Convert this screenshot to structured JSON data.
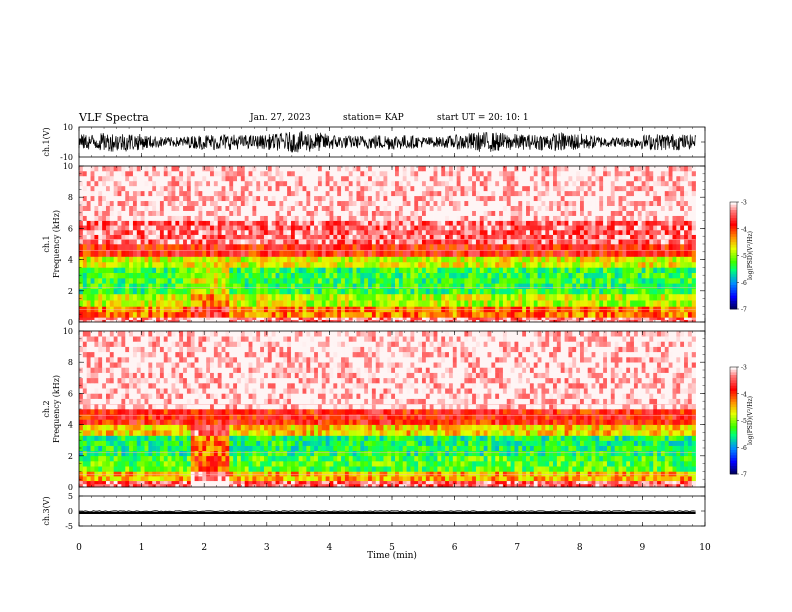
{
  "header": {
    "title": "VLF Spectra",
    "date": "Jan. 27, 2023",
    "station": "station= KAP",
    "start": "start  UT  =   20: 10: 1"
  },
  "chart_data": [
    {
      "type": "line",
      "panel": "ch1-waveform",
      "ylabel": "ch.1(V)",
      "ylim": [
        -10,
        10
      ],
      "yticklabels": [
        "10",
        "-10"
      ],
      "x_range_min": [
        0,
        9.85
      ],
      "description_of_values": "dense oscillating waveform filling most of the range"
    },
    {
      "type": "heatmap",
      "panel": "ch1-spectrogram",
      "ylabel_line1": "ch.1",
      "ylabel_line2": "Frequency (kHz)",
      "ylim": [
        0,
        10
      ],
      "yticks": [
        0,
        2,
        4,
        6,
        8,
        10
      ],
      "bands_khz": [
        {
          "from": 0,
          "to": 0.3,
          "level": -3.3
        },
        {
          "from": 0.3,
          "to": 1.0,
          "level": -4.2
        },
        {
          "from": 1.0,
          "to": 1.8,
          "level": -4.8
        },
        {
          "from": 1.8,
          "to": 3.5,
          "level": -5.3
        },
        {
          "from": 3.5,
          "to": 4.2,
          "level": -4.7
        },
        {
          "from": 4.2,
          "to": 5.0,
          "level": -3.8
        },
        {
          "from": 5.0,
          "to": 6.5,
          "level": -3.4
        },
        {
          "from": 6.5,
          "to": 10.0,
          "level": -3.0
        }
      ],
      "colorbar": {
        "label": "log(PSD)(V²/Hz)",
        "ticks": [
          "-3",
          "-4",
          "-5",
          "-6",
          "-7"
        ],
        "range": [
          -7,
          -3
        ]
      }
    },
    {
      "type": "heatmap",
      "panel": "ch2-spectrogram",
      "ylabel_line1": "ch.2",
      "ylabel_line2": "Frequency (kHz)",
      "ylim": [
        0,
        10
      ],
      "yticks": [
        0,
        2,
        4,
        6,
        8,
        10
      ],
      "bands_khz": [
        {
          "from": 0,
          "to": 0.4,
          "level": -3.4
        },
        {
          "from": 0.4,
          "to": 1.0,
          "level": -4.4
        },
        {
          "from": 1.0,
          "to": 2.0,
          "level": -5.2
        },
        {
          "from": 2.0,
          "to": 3.3,
          "level": -5.4
        },
        {
          "from": 3.3,
          "to": 4.0,
          "level": -4.5
        },
        {
          "from": 4.0,
          "to": 5.0,
          "level": -3.8
        },
        {
          "from": 5.0,
          "to": 10.0,
          "level": -3.0
        }
      ],
      "colorbar": {
        "label": "log(PSD)(V²/Hz)",
        "ticks": [
          "-3",
          "-4",
          "-5",
          "-6",
          "-7"
        ],
        "range": [
          -7,
          -3
        ]
      }
    },
    {
      "type": "line",
      "panel": "ch3-waveform",
      "ylabel": "ch.3(V)",
      "ylim": [
        -5,
        5
      ],
      "yticks": [
        5,
        0,
        -5
      ],
      "yticklabels": [
        "5",
        "0",
        "-5"
      ],
      "level_range": [
        -1.0,
        -0.2
      ]
    }
  ],
  "xaxis": {
    "label": "Time (min)",
    "ticks": [
      0,
      1,
      2,
      3,
      4,
      5,
      6,
      7,
      8,
      9,
      10
    ],
    "ticklabels": [
      "0",
      "1",
      "2",
      "3",
      "4",
      "5",
      "6",
      "7",
      "8",
      "9",
      "10"
    ],
    "range": [
      0,
      10
    ]
  },
  "colors": {
    "high": "#ff0000",
    "mid": "#ffff00",
    "midlow": "#00ff00",
    "low": "#0000ff",
    "floor": "#00004a",
    "top": "#ffffff"
  }
}
